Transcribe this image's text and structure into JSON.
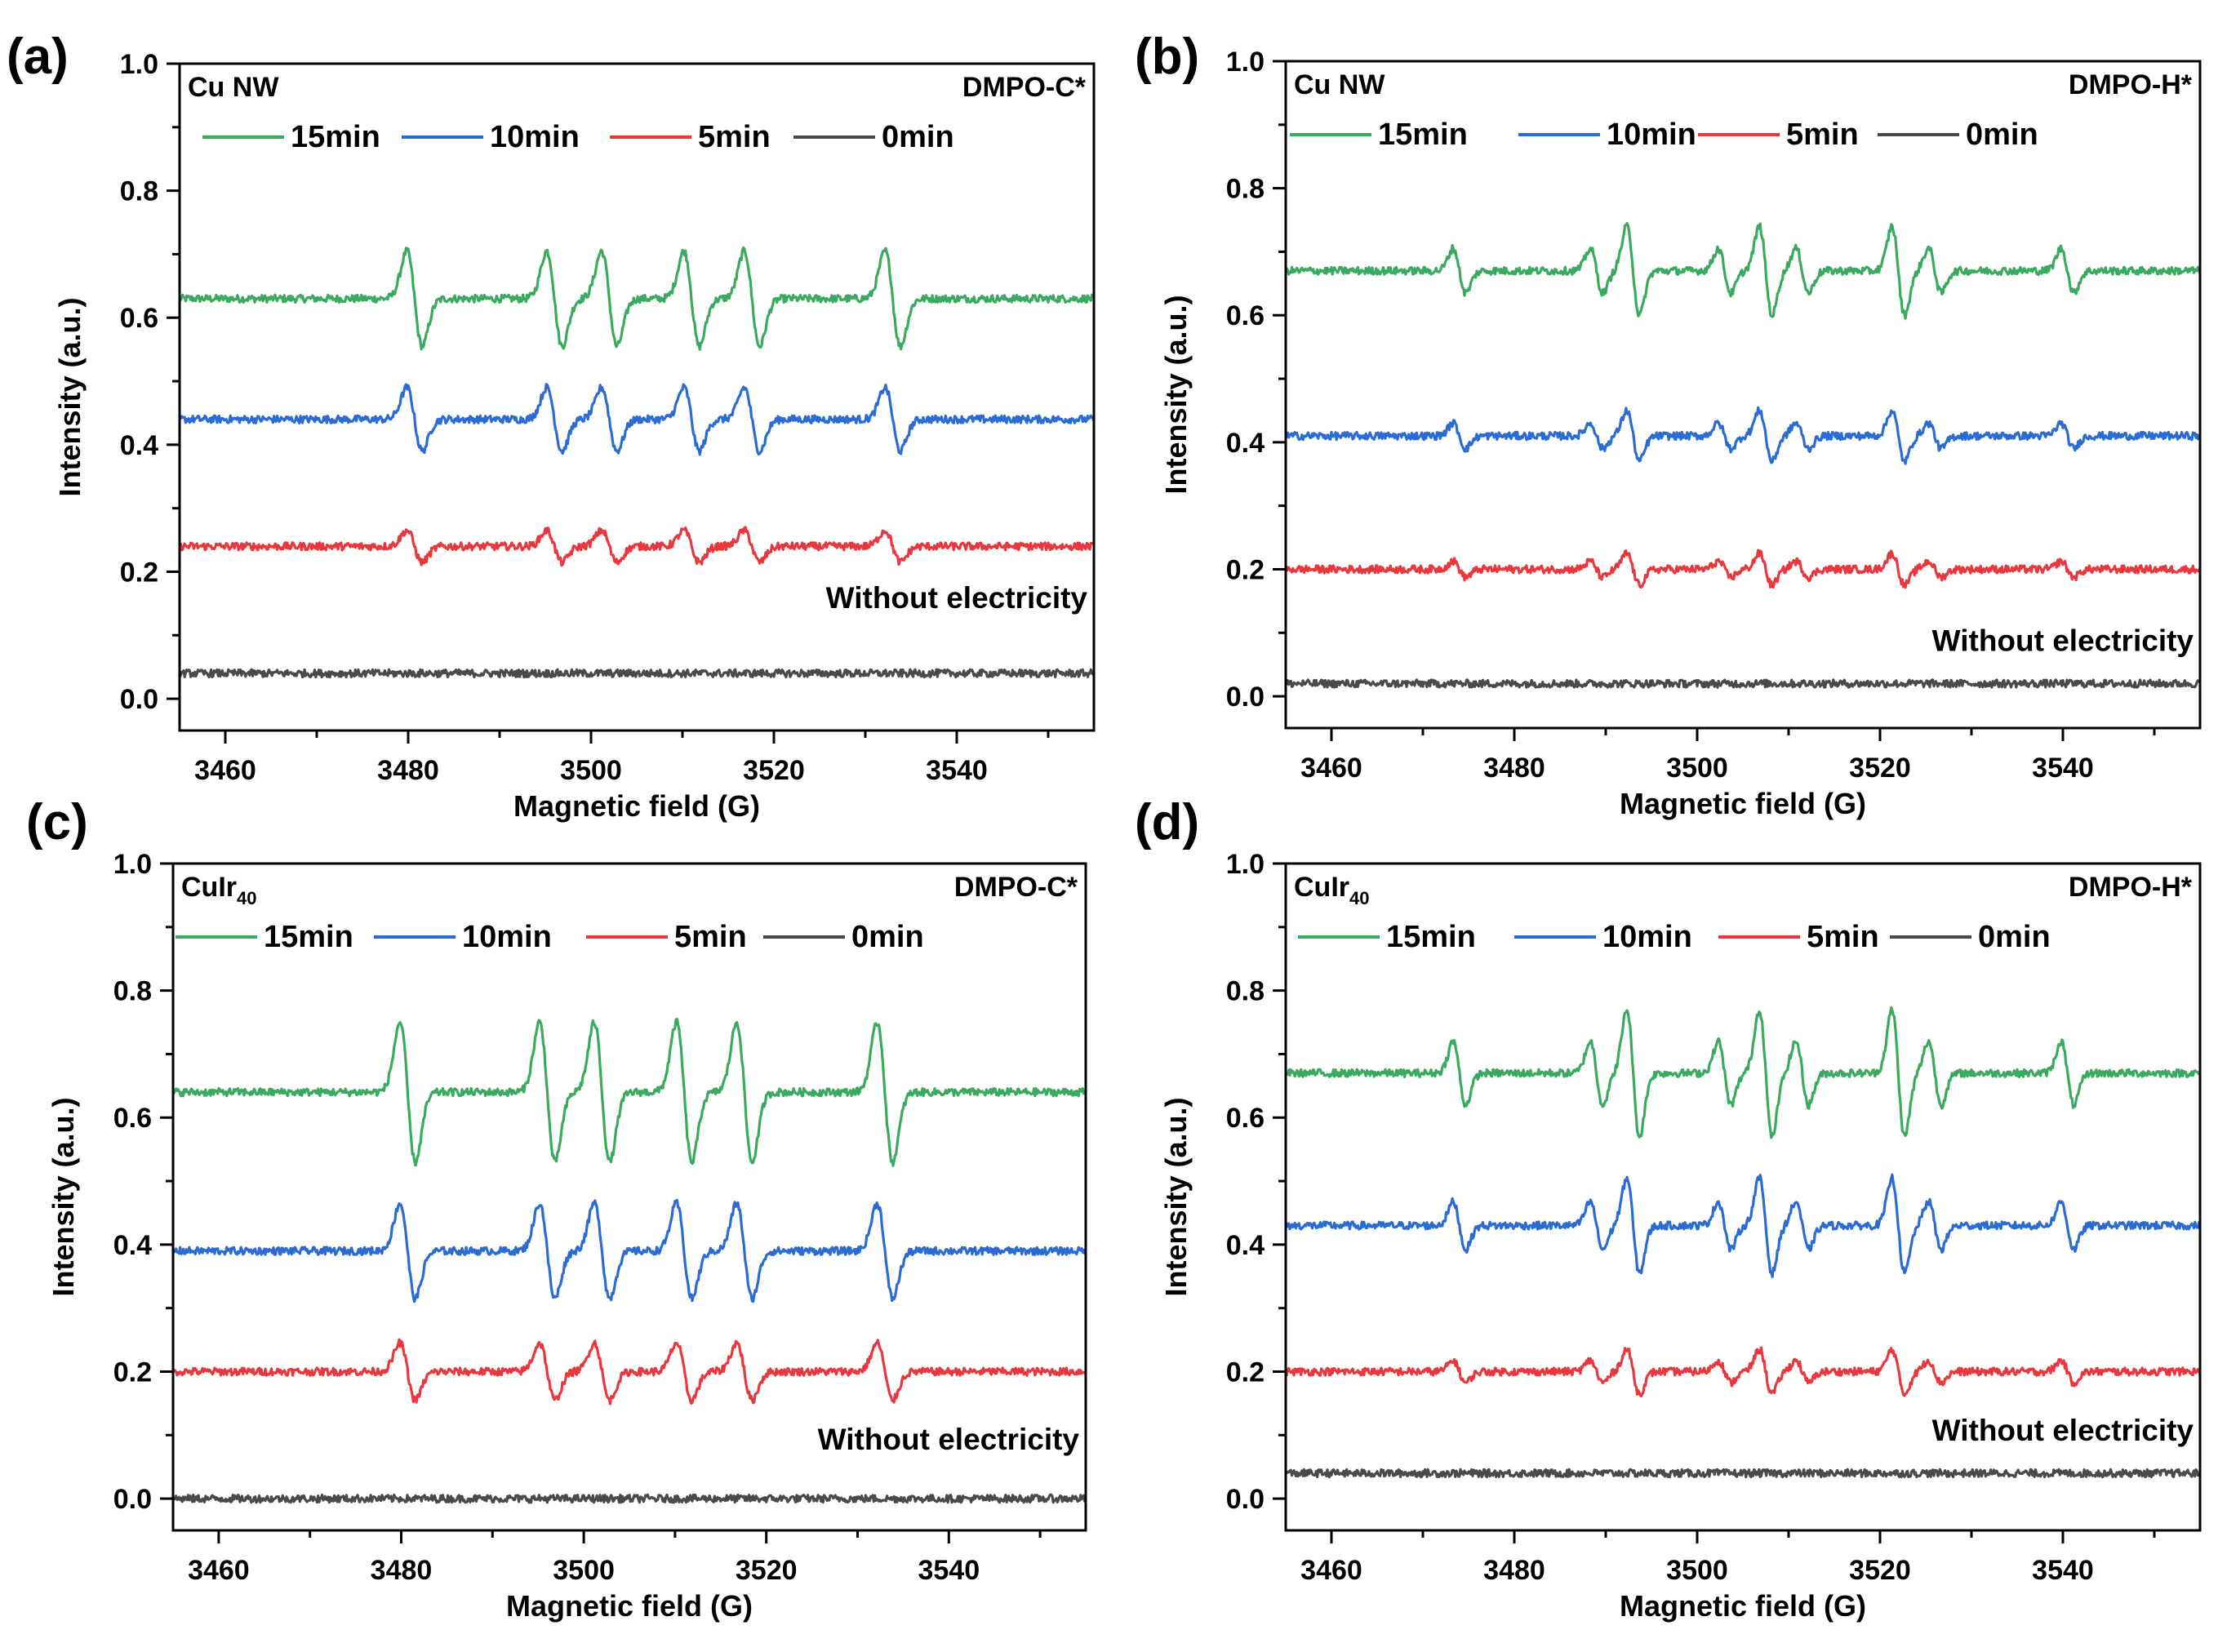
{
  "figure": {
    "colors": {
      "15min": "#3aaa5f",
      "10min": "#2a6bd4",
      "5min": "#e8383d",
      "0min": "#4a4a4a",
      "axis": "#000000",
      "background": "#ffffff"
    }
  },
  "chart_data": [
    {
      "panel_label": "(a)",
      "type": "line",
      "title": "",
      "sample": {
        "base": "Cu NW",
        "subscript": ""
      },
      "probe": "DMPO-C*",
      "xlabel": "Magnetic field (G)",
      "ylabel": "Intensity (a.u.)",
      "xlim": [
        3455,
        3555
      ],
      "ylim": [
        -0.05,
        1.0
      ],
      "xticks": [
        3460,
        3480,
        3500,
        3520,
        3540
      ],
      "yticks": [
        0.0,
        0.2,
        0.4,
        0.6,
        0.8,
        1.0
      ],
      "ytick_labels": [
        "0.0",
        "0.2",
        "0.4",
        "0.6",
        "0.8",
        "1.0"
      ],
      "legend": [
        "15min",
        "10min",
        "5min",
        "0min"
      ],
      "annotation": "Without electricity",
      "pattern": "carbon",
      "peak_positions_G": [
        3480.7,
        3496.0,
        3502.0,
        3511.0,
        3517.6,
        3533.0
      ],
      "series": [
        {
          "name": "15min",
          "baseline": 0.63,
          "amplitude": 0.075
        },
        {
          "name": "10min",
          "baseline": 0.44,
          "amplitude": 0.05
        },
        {
          "name": "5min",
          "baseline": 0.24,
          "amplitude": 0.025
        },
        {
          "name": "0min",
          "baseline": 0.04,
          "amplitude": 0.0
        }
      ]
    },
    {
      "panel_label": "(b)",
      "type": "line",
      "title": "",
      "sample": {
        "base": "Cu NW",
        "subscript": ""
      },
      "probe": "DMPO-H*",
      "xlabel": "Magnetic field (G)",
      "ylabel": "Intensity (a.u.)",
      "xlim": [
        3455,
        3555
      ],
      "ylim": [
        -0.05,
        1.0
      ],
      "xticks": [
        3460,
        3480,
        3500,
        3520,
        3540
      ],
      "yticks": [
        0.0,
        0.2,
        0.4,
        0.6,
        0.8,
        1.0
      ],
      "ytick_labels": [
        "0.0",
        "0.2",
        "0.4",
        "0.6",
        "0.8",
        "1.0"
      ],
      "legend": [
        "15min",
        "10min",
        "5min",
        "0min"
      ],
      "annotation": "Without electricity",
      "pattern": "hydrogen",
      "peak_positions_G": [
        3474,
        3489,
        3493,
        3503,
        3507.5,
        3511.5,
        3522,
        3526,
        3540.5
      ],
      "series": [
        {
          "name": "15min",
          "baseline": 0.67,
          "amplitude": 0.07
        },
        {
          "name": "10min",
          "baseline": 0.41,
          "amplitude": 0.04
        },
        {
          "name": "5min",
          "baseline": 0.2,
          "amplitude": 0.025
        },
        {
          "name": "0min",
          "baseline": 0.02,
          "amplitude": 0.0
        }
      ]
    },
    {
      "panel_label": "(c)",
      "type": "line",
      "title": "",
      "sample": {
        "base": "CuIr",
        "subscript": "40"
      },
      "probe": "DMPO-C*",
      "xlabel": "Magnetic field (G)",
      "ylabel": "Intensity (a.u.)",
      "xlim": [
        3455,
        3555
      ],
      "ylim": [
        -0.05,
        1.0
      ],
      "xticks": [
        3460,
        3480,
        3500,
        3520,
        3540
      ],
      "yticks": [
        0.0,
        0.2,
        0.4,
        0.6,
        0.8,
        1.0
      ],
      "ytick_labels": [
        "0.0",
        "0.2",
        "0.4",
        "0.6",
        "0.8",
        "1.0"
      ],
      "legend": [
        "15min",
        "10min",
        "5min",
        "0min"
      ],
      "annotation": "Without electricity",
      "pattern": "carbon",
      "peak_positions_G": [
        3480.7,
        3496.0,
        3502.0,
        3511.0,
        3517.6,
        3533.0
      ],
      "series": [
        {
          "name": "15min",
          "baseline": 0.64,
          "amplitude": 0.11
        },
        {
          "name": "10min",
          "baseline": 0.39,
          "amplitude": 0.075
        },
        {
          "name": "5min",
          "baseline": 0.2,
          "amplitude": 0.045
        },
        {
          "name": "0min",
          "baseline": 0.0,
          "amplitude": 0.0
        }
      ]
    },
    {
      "panel_label": "(d)",
      "type": "line",
      "title": "",
      "sample": {
        "base": "CuIr",
        "subscript": "40"
      },
      "probe": "DMPO-H*",
      "xlabel": "Magnetic field (G)",
      "ylabel": "Intensity (a.u.)",
      "xlim": [
        3455,
        3555
      ],
      "ylim": [
        -0.05,
        1.0
      ],
      "xticks": [
        3460,
        3480,
        3500,
        3520,
        3540
      ],
      "yticks": [
        0.0,
        0.2,
        0.4,
        0.6,
        0.8,
        1.0
      ],
      "ytick_labels": [
        "0.0",
        "0.2",
        "0.4",
        "0.6",
        "0.8",
        "1.0"
      ],
      "legend": [
        "15min",
        "10min",
        "5min",
        "0min"
      ],
      "annotation": "Without electricity",
      "pattern": "hydrogen",
      "peak_positions_G": [
        3474,
        3489,
        3493,
        3503,
        3507.5,
        3511.5,
        3522,
        3526,
        3540.5
      ],
      "series": [
        {
          "name": "15min",
          "baseline": 0.67,
          "amplitude": 0.1
        },
        {
          "name": "10min",
          "baseline": 0.43,
          "amplitude": 0.075
        },
        {
          "name": "5min",
          "baseline": 0.2,
          "amplitude": 0.035
        },
        {
          "name": "0min",
          "baseline": 0.04,
          "amplitude": 0.0
        }
      ]
    }
  ]
}
